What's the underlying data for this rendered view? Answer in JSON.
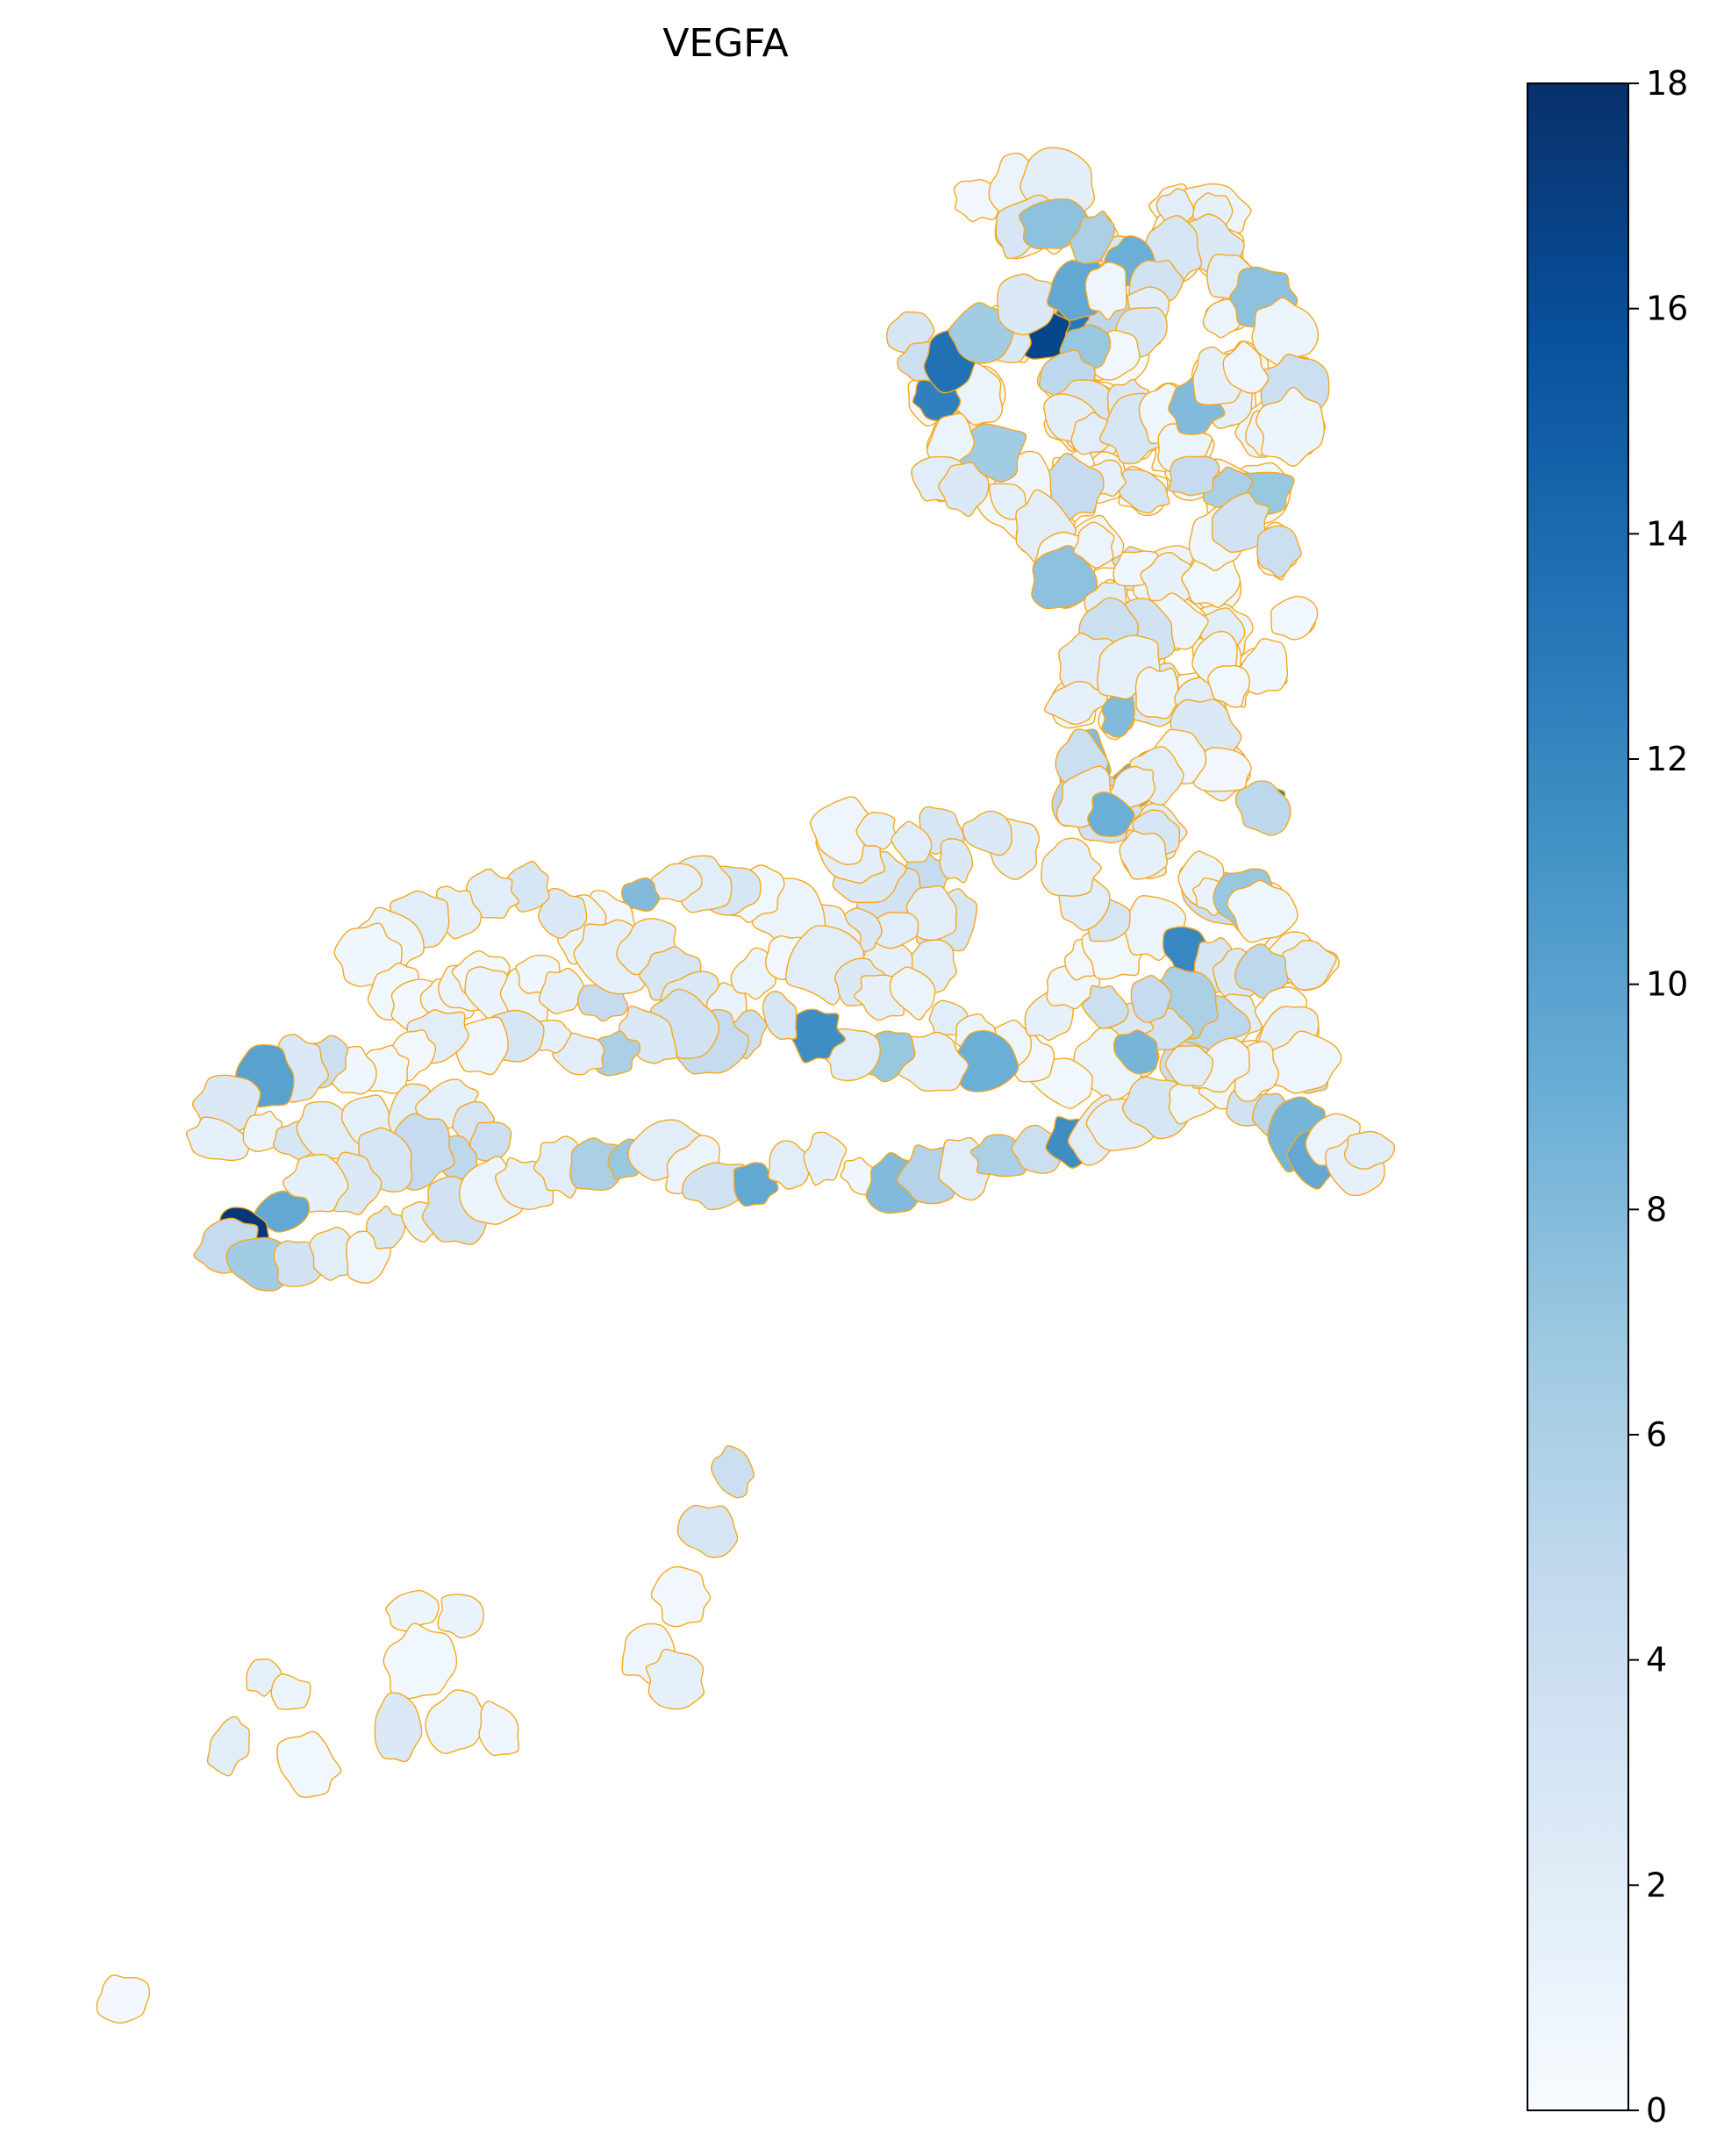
{
  "chart_data": {
    "type": "heatmap",
    "title": "VEGFA",
    "colormap": "Blues",
    "cell_border_color": "#f5a81c",
    "colorbar": {
      "min": 0,
      "max": 18,
      "ticks": [
        "0",
        "2",
        "4",
        "6",
        "8",
        "10",
        "12",
        "14",
        "16",
        "18"
      ]
    },
    "cell_values": [
      0.6,
      0.5,
      0.4,
      0.7,
      0.8,
      0.6,
      0.5,
      0.9,
      0.4,
      0.5,
      3.0,
      2.0,
      0.6,
      0.4,
      1.0,
      0.8,
      0.4,
      0.7,
      0.5,
      0.9,
      0.3,
      0.6,
      0.8,
      0.5,
      0.4,
      0.7,
      1.0,
      0.8,
      0.5,
      0.4,
      0.6,
      0.5,
      2.5,
      0.3,
      0.4,
      0.6,
      0.3,
      1.2,
      1.5,
      0.8,
      0.5,
      2.0,
      0.6,
      1.0,
      0.4,
      0.5,
      1.0,
      0.3,
      0.6,
      0.5,
      0.7,
      0.4,
      0.5,
      0.3,
      0.6,
      0.9,
      1.5,
      0.5,
      0.4,
      0.5,
      0.4,
      1.8,
      1.2,
      0.8,
      0.6,
      3.5,
      1.0,
      0.7,
      0.9,
      0.6,
      0.5,
      0.4,
      1.0,
      0.6,
      0.5,
      0.8,
      0.7,
      0.5,
      0.6,
      1.0,
      2.5,
      0.5,
      0.8,
      0.6,
      0.7,
      0.4,
      0.5,
      1.5,
      13.0,
      14.0,
      12.5,
      9.0,
      8.0,
      5.0,
      3.5,
      2.0,
      1.5,
      3.0,
      4.0,
      0.6,
      0.5,
      0.8,
      1.0,
      0.5,
      0.7,
      3.0,
      4.5,
      0.6,
      0.8,
      4.0,
      2.5,
      1.0,
      0.6,
      0.5,
      0.8,
      1.5,
      0.7,
      0.5,
      0.6,
      1.0,
      12.0,
      3.0,
      2.5,
      2.0,
      5.0,
      6.0,
      3.5,
      2.5,
      4.0,
      4.5,
      3.0,
      2.0,
      1.5,
      1.8,
      2.5,
      3.0,
      4.5,
      3.5,
      2.5,
      1.8,
      0.8,
      1.5,
      2.0,
      2.5,
      3.0,
      2.0,
      1.5,
      1.8,
      2.0,
      2.5,
      1.5,
      1.0,
      0.6,
      3.0,
      2.0,
      1.5,
      8.0,
      0.5,
      1.0,
      2.5,
      3.0,
      2.0,
      1.5,
      2.0,
      0.9,
      0.7,
      0.6,
      0.5,
      0.8,
      1.0,
      0.6,
      1.2,
      0.9,
      0.7,
      1.5,
      4.5,
      1.5,
      2.0,
      3.0,
      2.5,
      1.2,
      1.0,
      0.5,
      2.0,
      2.5,
      1.5,
      1.0,
      2.0,
      1.0,
      9.0,
      1.5,
      7.0,
      2.0,
      11.5,
      3.0,
      4.0,
      4.5,
      3.5,
      2.5,
      6.0,
      2.0,
      1.5,
      3.0,
      0.8,
      2.0,
      0.5,
      0.6,
      0.7,
      4.0,
      2.5,
      10.0,
      2.5,
      1.5,
      1.0,
      3.0,
      2.0,
      1.5,
      2.0,
      1.5,
      3.0,
      4.0,
      5.0,
      4.5,
      3.0,
      2.5,
      1.5,
      9.5,
      17.5,
      4.5,
      6.5,
      3.5,
      2.0,
      0.8,
      2.5,
      1.5,
      3.5,
      1.0,
      1.5,
      2.0,
      6.0,
      7.0,
      2.0,
      1.0,
      3.5,
      9.5,
      2.0,
      1.5,
      0.7,
      8.0,
      5.5,
      2.0,
      6.0,
      4.0,
      11.5,
      2.0,
      1.5,
      3.0,
      1.0,
      0.8,
      3.5,
      5.0,
      8.5,
      9.5,
      1.0,
      1.5,
      2.0,
      0.5,
      1.0,
      1.8,
      3.0,
      7.5,
      6.0,
      2.0,
      1.5,
      2.5,
      3.0,
      9.0,
      3.5,
      2.0,
      1.0,
      7.5,
      1.0,
      4.0,
      1.5,
      1.8,
      5.0,
      13.0,
      16.5,
      2.5,
      1.0,
      12.5,
      3.0,
      4.0,
      13.5,
      6.5,
      2.5,
      9.5,
      0.8,
      3.0,
      0.5,
      7.0,
      5.0,
      3.0,
      1.8,
      2.0,
      2.5,
      3.0,
      0.7,
      1.0,
      8.0,
      1.5,
      0.8,
      1.2,
      0.9,
      7.0,
      6.0,
      4.5,
      3.0,
      1.5,
      4.5,
      0.8,
      6.5,
      1.0,
      2.0,
      2.5,
      1.5,
      1.8,
      0.5,
      7.5,
      1.0,
      2.0,
      0.7,
      1.5,
      0.6,
      0.8,
      3.5,
      4.0,
      0.6,
      2.0,
      0.9,
      3.5,
      4.0,
      2.0,
      1.5,
      8.0,
      1.5,
      0.9,
      2.0,
      0.9,
      0.7,
      0.6,
      1.0,
      2.5,
      0.5,
      5.0,
      0.8,
      2.0,
      1.5,
      4.0,
      2.0,
      9.0,
      3.0,
      1.5,
      1.0,
      1.2,
      7.0,
      0.8,
      1.0,
      2.0,
      5.0,
      0.6,
      1.5,
      0.8,
      1.0,
      1.0,
      2.0,
      8.5,
      4.0,
      3.0,
      0.5,
      0.8,
      1.5,
      0.9,
      1.2,
      0.6,
      2.5,
      1.0,
      0.7,
      2.0,
      1.5,
      1.0,
      0.6,
      0.4
    ]
  }
}
